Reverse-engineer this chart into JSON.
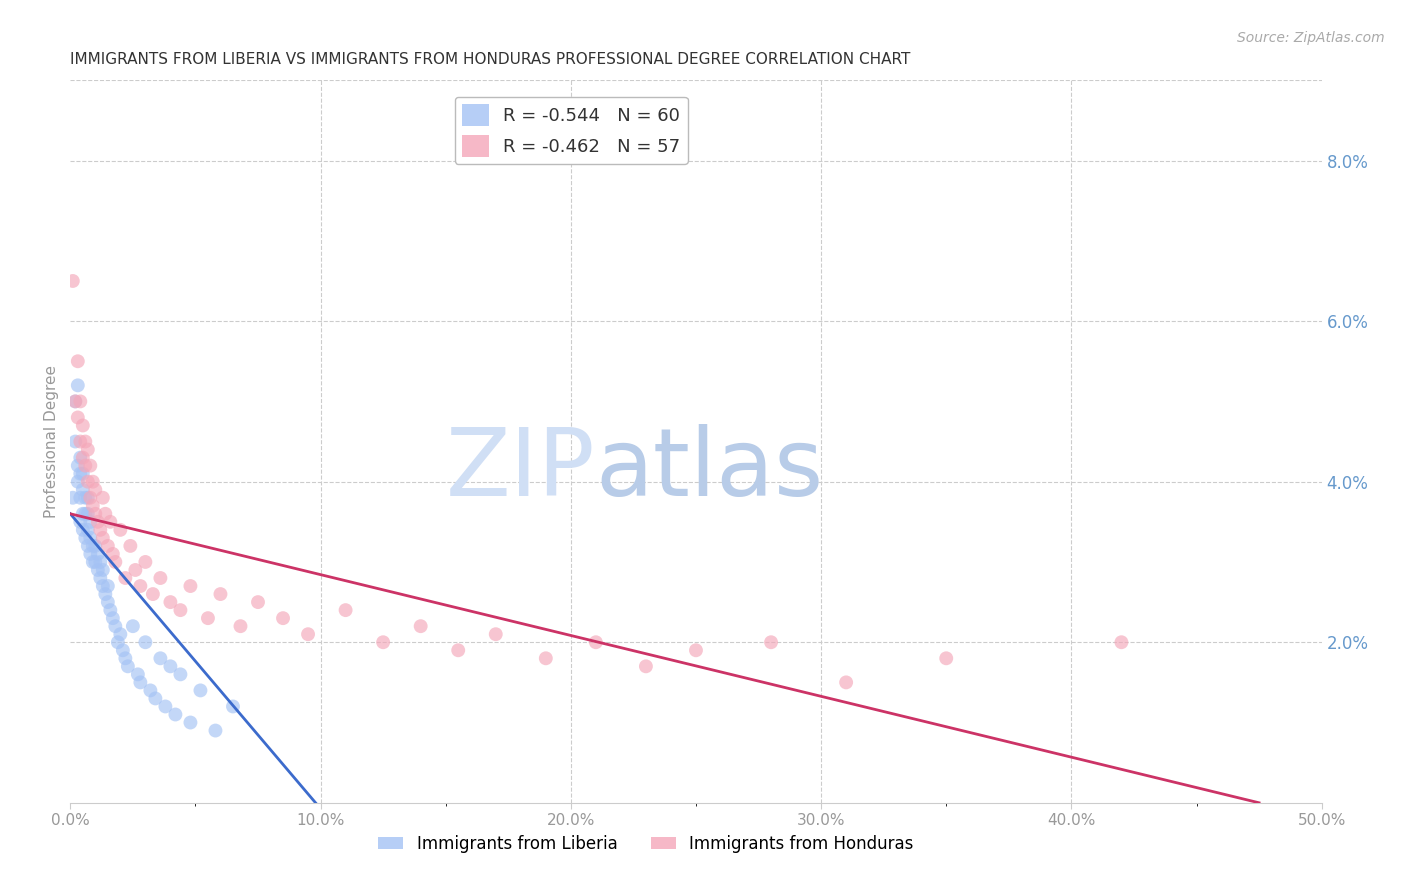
{
  "title": "IMMIGRANTS FROM LIBERIA VS IMMIGRANTS FROM HONDURAS PROFESSIONAL DEGREE CORRELATION CHART",
  "source": "Source: ZipAtlas.com",
  "ylabel": "Professional Degree",
  "xlim": [
    0.0,
    0.5
  ],
  "ylim": [
    0.0,
    0.09
  ],
  "xticklabels": [
    "0.0%",
    "",
    "10.0%",
    "",
    "20.0%",
    "",
    "30.0%",
    "",
    "40.0%",
    "",
    "50.0%"
  ],
  "xtick_vals": [
    0.0,
    0.05,
    0.1,
    0.15,
    0.2,
    0.25,
    0.3,
    0.35,
    0.4,
    0.45,
    0.5
  ],
  "yticks_right": [
    0.0,
    0.02,
    0.04,
    0.06,
    0.08
  ],
  "yticklabels_right": [
    "",
    "2.0%",
    "4.0%",
    "6.0%",
    "8.0%"
  ],
  "liberia_color": "#a4c2f4",
  "honduras_color": "#f4a7b9",
  "liberia_line_color": "#3c6bcc",
  "honduras_line_color": "#cc3366",
  "liberia_R": -0.544,
  "liberia_N": 60,
  "honduras_R": -0.462,
  "honduras_N": 57,
  "legend_label_liberia": "Immigrants from Liberia",
  "legend_label_honduras": "Immigrants from Honduras",
  "watermark_zip": "ZIP",
  "watermark_atlas": "atlas",
  "background_color": "#ffffff",
  "grid_color": "#cccccc",
  "title_color": "#333333",
  "right_axis_color": "#6699cc",
  "blue_line_x": [
    0.0,
    0.098
  ],
  "blue_line_y": [
    0.036,
    0.0
  ],
  "pink_line_x": [
    0.0,
    0.475
  ],
  "pink_line_y": [
    0.036,
    0.0
  ],
  "liberia_x": [
    0.001,
    0.002,
    0.002,
    0.003,
    0.003,
    0.003,
    0.004,
    0.004,
    0.004,
    0.004,
    0.005,
    0.005,
    0.005,
    0.005,
    0.006,
    0.006,
    0.006,
    0.007,
    0.007,
    0.007,
    0.007,
    0.008,
    0.008,
    0.008,
    0.009,
    0.009,
    0.01,
    0.01,
    0.011,
    0.011,
    0.012,
    0.012,
    0.013,
    0.013,
    0.014,
    0.015,
    0.015,
    0.016,
    0.017,
    0.018,
    0.019,
    0.02,
    0.021,
    0.022,
    0.023,
    0.025,
    0.027,
    0.028,
    0.03,
    0.032,
    0.034,
    0.036,
    0.038,
    0.04,
    0.042,
    0.044,
    0.048,
    0.052,
    0.058,
    0.065
  ],
  "liberia_y": [
    0.038,
    0.05,
    0.045,
    0.052,
    0.04,
    0.042,
    0.035,
    0.038,
    0.041,
    0.043,
    0.034,
    0.036,
    0.039,
    0.041,
    0.033,
    0.036,
    0.038,
    0.032,
    0.034,
    0.036,
    0.038,
    0.031,
    0.033,
    0.035,
    0.03,
    0.032,
    0.03,
    0.032,
    0.029,
    0.031,
    0.028,
    0.03,
    0.027,
    0.029,
    0.026,
    0.025,
    0.027,
    0.024,
    0.023,
    0.022,
    0.02,
    0.021,
    0.019,
    0.018,
    0.017,
    0.022,
    0.016,
    0.015,
    0.02,
    0.014,
    0.013,
    0.018,
    0.012,
    0.017,
    0.011,
    0.016,
    0.01,
    0.014,
    0.009,
    0.012
  ],
  "honduras_x": [
    0.001,
    0.002,
    0.003,
    0.003,
    0.004,
    0.004,
    0.005,
    0.005,
    0.006,
    0.006,
    0.007,
    0.007,
    0.008,
    0.008,
    0.009,
    0.009,
    0.01,
    0.01,
    0.011,
    0.012,
    0.013,
    0.013,
    0.014,
    0.015,
    0.016,
    0.017,
    0.018,
    0.02,
    0.022,
    0.024,
    0.026,
    0.028,
    0.03,
    0.033,
    0.036,
    0.04,
    0.044,
    0.048,
    0.055,
    0.06,
    0.068,
    0.075,
    0.085,
    0.095,
    0.11,
    0.125,
    0.14,
    0.155,
    0.17,
    0.19,
    0.21,
    0.23,
    0.25,
    0.28,
    0.31,
    0.35,
    0.42
  ],
  "honduras_y": [
    0.065,
    0.05,
    0.048,
    0.055,
    0.045,
    0.05,
    0.043,
    0.047,
    0.042,
    0.045,
    0.04,
    0.044,
    0.038,
    0.042,
    0.037,
    0.04,
    0.036,
    0.039,
    0.035,
    0.034,
    0.038,
    0.033,
    0.036,
    0.032,
    0.035,
    0.031,
    0.03,
    0.034,
    0.028,
    0.032,
    0.029,
    0.027,
    0.03,
    0.026,
    0.028,
    0.025,
    0.024,
    0.027,
    0.023,
    0.026,
    0.022,
    0.025,
    0.023,
    0.021,
    0.024,
    0.02,
    0.022,
    0.019,
    0.021,
    0.018,
    0.02,
    0.017,
    0.019,
    0.02,
    0.015,
    0.018,
    0.02
  ]
}
